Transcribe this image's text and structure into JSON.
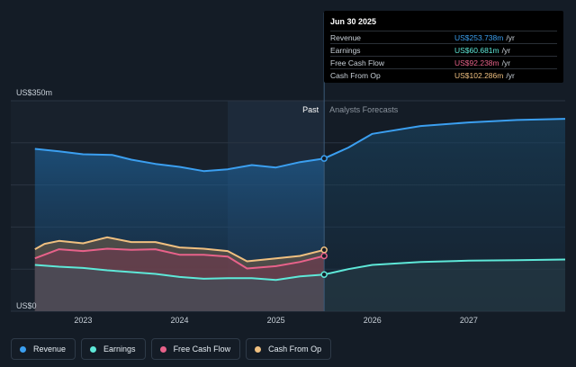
{
  "tooltip": {
    "date": "Jun 30 2025",
    "rows": [
      {
        "label": "Revenue",
        "value": "US$253.738m",
        "unit": "/yr",
        "color": "#3b9ff0"
      },
      {
        "label": "Earnings",
        "value": "US$60.681m",
        "unit": "/yr",
        "color": "#5ee8d8"
      },
      {
        "label": "Free Cash Flow",
        "value": "US$92.238m",
        "unit": "/yr",
        "color": "#e8628a"
      },
      {
        "label": "Cash From Op",
        "value": "US$102.286m",
        "unit": "/yr",
        "color": "#f0c080"
      }
    ]
  },
  "legend": [
    {
      "label": "Revenue",
      "color": "#3b9ff0"
    },
    {
      "label": "Earnings",
      "color": "#5ee8d8"
    },
    {
      "label": "Free Cash Flow",
      "color": "#e8628a"
    },
    {
      "label": "Cash From Op",
      "color": "#f0c080"
    }
  ],
  "chart_data": {
    "type": "area",
    "ylabel_top": "US$350m",
    "ylabel_bottom": "US$0",
    "ylim": [
      0,
      350
    ],
    "xlim": [
      2022.25,
      2028.0
    ],
    "past_label": "Past",
    "forecast_label": "Analysts Forecasts",
    "divider_x": 2025.5,
    "highlight_range": [
      2024.5,
      2025.5
    ],
    "x_ticks": [
      {
        "x": 2023.0,
        "label": "2023"
      },
      {
        "x": 2024.0,
        "label": "2024"
      },
      {
        "x": 2025.0,
        "label": "2025"
      },
      {
        "x": 2026.0,
        "label": "2026"
      },
      {
        "x": 2027.0,
        "label": "2027"
      }
    ],
    "grid_y": [
      0,
      70,
      140,
      210,
      280,
      350
    ],
    "series": [
      {
        "name": "Revenue",
        "color": "#3b9ff0",
        "points": [
          [
            2022.5,
            270
          ],
          [
            2022.75,
            266
          ],
          [
            2023.0,
            261
          ],
          [
            2023.3,
            260
          ],
          [
            2023.5,
            252
          ],
          [
            2023.75,
            245
          ],
          [
            2024.0,
            240
          ],
          [
            2024.25,
            233
          ],
          [
            2024.5,
            236
          ],
          [
            2024.75,
            243
          ],
          [
            2025.0,
            239
          ],
          [
            2025.25,
            248
          ],
          [
            2025.5,
            254
          ]
        ],
        "forecast": [
          [
            2025.5,
            254
          ],
          [
            2025.75,
            272
          ],
          [
            2026.0,
            295
          ],
          [
            2026.5,
            308
          ],
          [
            2027.0,
            314
          ],
          [
            2027.5,
            318
          ],
          [
            2028.0,
            320
          ]
        ]
      },
      {
        "name": "Cash From Op",
        "color": "#f0c080",
        "points": [
          [
            2022.5,
            103
          ],
          [
            2022.6,
            112
          ],
          [
            2022.75,
            117
          ],
          [
            2023.0,
            113
          ],
          [
            2023.25,
            123
          ],
          [
            2023.5,
            115
          ],
          [
            2023.75,
            115
          ],
          [
            2024.0,
            106
          ],
          [
            2024.25,
            104
          ],
          [
            2024.5,
            100
          ],
          [
            2024.7,
            83
          ],
          [
            2025.0,
            88
          ],
          [
            2025.25,
            92
          ],
          [
            2025.5,
            102
          ]
        ]
      },
      {
        "name": "Free Cash Flow",
        "color": "#e8628a",
        "points": [
          [
            2022.5,
            88
          ],
          [
            2022.75,
            103
          ],
          [
            2023.0,
            100
          ],
          [
            2023.25,
            104
          ],
          [
            2023.5,
            102
          ],
          [
            2023.75,
            103
          ],
          [
            2024.0,
            94
          ],
          [
            2024.25,
            94
          ],
          [
            2024.5,
            91
          ],
          [
            2024.7,
            71
          ],
          [
            2025.0,
            75
          ],
          [
            2025.25,
            82
          ],
          [
            2025.5,
            92
          ]
        ]
      },
      {
        "name": "Earnings",
        "color": "#5ee8d8",
        "points": [
          [
            2022.5,
            77
          ],
          [
            2022.75,
            74
          ],
          [
            2023.0,
            72
          ],
          [
            2023.25,
            68
          ],
          [
            2023.5,
            65
          ],
          [
            2023.75,
            62
          ],
          [
            2024.0,
            57
          ],
          [
            2024.25,
            54
          ],
          [
            2024.5,
            55
          ],
          [
            2024.75,
            55
          ],
          [
            2025.0,
            52
          ],
          [
            2025.25,
            58
          ],
          [
            2025.5,
            61
          ]
        ],
        "forecast": [
          [
            2025.5,
            61
          ],
          [
            2025.75,
            70
          ],
          [
            2026.0,
            77
          ],
          [
            2026.5,
            82
          ],
          [
            2027.0,
            84
          ],
          [
            2027.5,
            85
          ],
          [
            2028.0,
            86
          ]
        ]
      }
    ]
  }
}
